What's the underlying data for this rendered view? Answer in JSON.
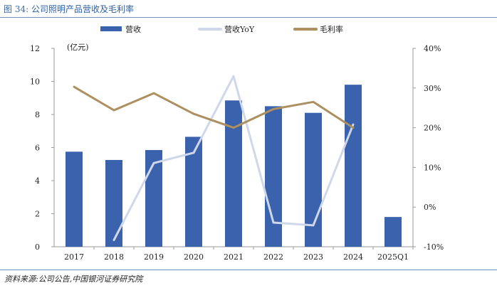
{
  "figure": {
    "label": "图 34:",
    "title": "公司照明产品营收及毛利率",
    "source": "资料来源:公司公告,中国银河证券研究院"
  },
  "chart_data": {
    "type": "bar",
    "title": "公司照明产品营收及毛利率",
    "categories": [
      "2017",
      "2018",
      "2019",
      "2020",
      "2021",
      "2022",
      "2023",
      "2024",
      "2025Q1"
    ],
    "y_unit_label": "(亿元)",
    "ylim": [
      0,
      12
    ],
    "y_ticks": [
      "0",
      "2",
      "4",
      "6",
      "8",
      "10",
      "12"
    ],
    "y2lim": [
      -10,
      40
    ],
    "y2_ticks": [
      "-10%",
      "0%",
      "10%",
      "20%",
      "30%",
      "40%"
    ],
    "legend_position": "top",
    "series": [
      {
        "name": "营收",
        "kind": "bar",
        "axis": "left",
        "color": "#3b62ad",
        "values": [
          5.75,
          5.25,
          5.85,
          6.65,
          8.85,
          8.5,
          8.1,
          9.8,
          1.8
        ]
      },
      {
        "name": "营收YoY",
        "kind": "line",
        "axis": "right",
        "color": "#cfd8ea",
        "values": [
          null,
          -8.3,
          11.1,
          13.7,
          33.0,
          -3.9,
          -4.6,
          20.8,
          null
        ]
      },
      {
        "name": "毛利率",
        "kind": "line",
        "axis": "right",
        "color": "#ad8f60",
        "values": [
          30.3,
          24.4,
          28.7,
          23.5,
          20.0,
          24.7,
          26.5,
          20.0,
          null
        ]
      }
    ]
  }
}
